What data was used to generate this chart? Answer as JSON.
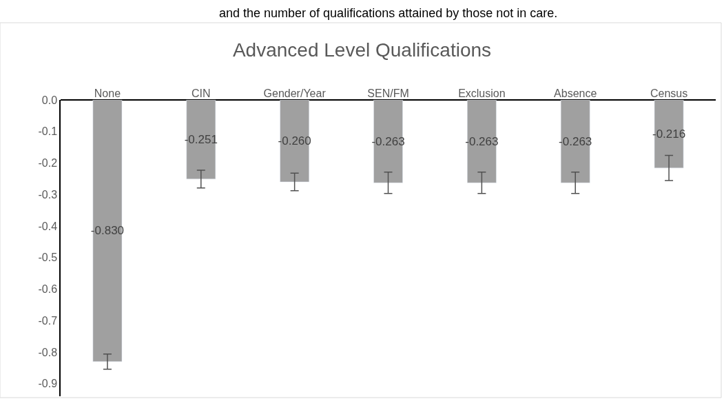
{
  "chart_data": {
    "type": "bar",
    "title": "Advanced Level Qualifications",
    "annotations": [
      "and the number of qualifications attained by those not in care."
    ],
    "categories": [
      "None",
      "CIN",
      "Gender/Year",
      "SEN/FM",
      "Exclusion",
      "Absence",
      "Census"
    ],
    "values": [
      -0.83,
      -0.251,
      -0.26,
      -0.263,
      -0.263,
      -0.263,
      -0.216
    ],
    "errors": [
      0.024,
      0.028,
      0.028,
      0.034,
      0.034,
      0.034,
      0.04
    ],
    "color": "#a0a0a0",
    "ylim": [
      -0.94,
      0
    ],
    "yticks": [
      {
        "value": 0,
        "label": "0.0"
      },
      {
        "value": -0.1,
        "label": "-0.1"
      },
      {
        "value": -0.2,
        "label": "-0.2"
      },
      {
        "value": -0.3,
        "label": "-0.3"
      },
      {
        "value": -0.4,
        "label": "-0.4"
      },
      {
        "value": -0.5,
        "label": "-0.5"
      },
      {
        "value": -0.6,
        "label": "-0.6"
      },
      {
        "value": -0.7,
        "label": "-0.7"
      },
      {
        "value": -0.8,
        "label": "-0.8"
      },
      {
        "value": -0.9,
        "label": "-0.9"
      }
    ],
    "value_labels": [
      "-0.830",
      "-0.251",
      "-0.260",
      "-0.263",
      "-0.263",
      "-0.263",
      "-0.216"
    ],
    "legend": false
  }
}
